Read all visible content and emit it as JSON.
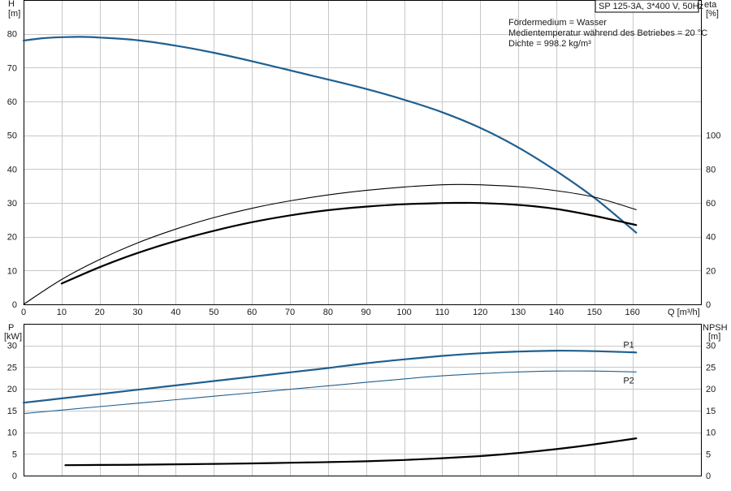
{
  "pump_label": "SP 125-3A, 3*400 V, 50Hz",
  "info_lines": [
    "Fördermedium = Wasser",
    "Medientemperatur während des Betriebes = 20 °C",
    "Dichte = 998.2 kg/m³"
  ],
  "colors": {
    "blue": "#1f5f8f",
    "black": "#000000",
    "grid": "#c8c8c8"
  },
  "chart_data": [
    {
      "type": "line",
      "panel": "top",
      "x_axis_label": "Q [m³/h]",
      "x_ticks": [
        0,
        10,
        20,
        30,
        40,
        50,
        60,
        70,
        80,
        90,
        100,
        110,
        120,
        130,
        140,
        150,
        160
      ],
      "xlim": [
        0,
        178
      ],
      "left_axis": {
        "label_lines": [
          "H",
          "[m]"
        ],
        "ticks": [
          0,
          10,
          20,
          30,
          40,
          50,
          60,
          70,
          80
        ],
        "lim": [
          0,
          90
        ]
      },
      "right_axis": {
        "label_lines": [
          "eta",
          "[%]"
        ],
        "ticks": [
          0,
          20,
          40,
          60,
          80,
          100
        ],
        "lim": [
          0,
          180
        ]
      },
      "series": [
        {
          "axis": "left",
          "color_key": "blue",
          "width": 2.2,
          "points": [
            [
              0,
              78
            ],
            [
              5,
              78.7
            ],
            [
              10,
              79
            ],
            [
              15,
              79.1
            ],
            [
              20,
              78.9
            ],
            [
              30,
              78.1
            ],
            [
              40,
              76.5
            ],
            [
              50,
              74.4
            ],
            [
              60,
              71.9
            ],
            [
              70,
              69.2
            ],
            [
              80,
              66.5
            ],
            [
              90,
              63.7
            ],
            [
              100,
              60.5
            ],
            [
              110,
              56.8
            ],
            [
              120,
              52.2
            ],
            [
              130,
              46.4
            ],
            [
              140,
              39.4
            ],
            [
              150,
              31.5
            ],
            [
              161,
              21.2
            ]
          ]
        },
        {
          "axis": "right",
          "color_key": "black",
          "width": 1.1,
          "points": [
            [
              0,
              0
            ],
            [
              10,
              14.7
            ],
            [
              20,
              26.5
            ],
            [
              30,
              36.4
            ],
            [
              40,
              44.5
            ],
            [
              50,
              51.3
            ],
            [
              60,
              56.8
            ],
            [
              70,
              61.2
            ],
            [
              80,
              64.7
            ],
            [
              90,
              67.4
            ],
            [
              100,
              69.4
            ],
            [
              110,
              70.7
            ],
            [
              115,
              70.9
            ],
            [
              120,
              70.7
            ],
            [
              130,
              69.6
            ],
            [
              140,
              67.2
            ],
            [
              150,
              63.4
            ],
            [
              161,
              56
            ]
          ]
        },
        {
          "axis": "right",
          "color_key": "black",
          "width": 2.2,
          "points": [
            [
              10,
              12.3
            ],
            [
              20,
              22
            ],
            [
              30,
              30.4
            ],
            [
              40,
              37.5
            ],
            [
              50,
              43.5
            ],
            [
              60,
              48.6
            ],
            [
              70,
              52.6
            ],
            [
              80,
              55.7
            ],
            [
              90,
              57.8
            ],
            [
              100,
              59.2
            ],
            [
              110,
              59.9
            ],
            [
              115,
              60
            ],
            [
              120,
              59.9
            ],
            [
              130,
              58.8
            ],
            [
              140,
              56.4
            ],
            [
              150,
              52.3
            ],
            [
              161,
              46.9
            ]
          ]
        }
      ]
    },
    {
      "type": "line",
      "panel": "bottom",
      "xlim": [
        0,
        178
      ],
      "left_axis": {
        "label_lines": [
          "P",
          "[kW]"
        ],
        "ticks": [
          0,
          5,
          10,
          15,
          20,
          25,
          30
        ],
        "lim": [
          0,
          35
        ]
      },
      "right_axis": {
        "label_lines": [
          "NPSH",
          "[m]"
        ],
        "ticks": [
          0,
          5,
          10,
          15,
          20,
          25,
          30
        ],
        "lim": [
          0,
          35
        ]
      },
      "series": [
        {
          "name": "P1",
          "axis": "left",
          "color_key": "blue",
          "width": 2.2,
          "points": [
            [
              0,
              16.8
            ],
            [
              10,
              17.8
            ],
            [
              20,
              18.8
            ],
            [
              30,
              19.8
            ],
            [
              40,
              20.8
            ],
            [
              50,
              21.8
            ],
            [
              60,
              22.8
            ],
            [
              70,
              23.8
            ],
            [
              80,
              24.8
            ],
            [
              90,
              25.9
            ],
            [
              100,
              26.8
            ],
            [
              110,
              27.6
            ],
            [
              120,
              28.2
            ],
            [
              130,
              28.6
            ],
            [
              140,
              28.8
            ],
            [
              150,
              28.7
            ],
            [
              161,
              28.4
            ]
          ]
        },
        {
          "name": "P2",
          "axis": "left",
          "color_key": "blue",
          "width": 1.1,
          "points": [
            [
              0,
              14.3
            ],
            [
              10,
              15.1
            ],
            [
              20,
              15.9
            ],
            [
              30,
              16.7
            ],
            [
              40,
              17.5
            ],
            [
              50,
              18.3
            ],
            [
              60,
              19.1
            ],
            [
              70,
              19.9
            ],
            [
              80,
              20.7
            ],
            [
              90,
              21.5
            ],
            [
              100,
              22.3
            ],
            [
              110,
              23
            ],
            [
              120,
              23.5
            ],
            [
              130,
              23.9
            ],
            [
              140,
              24.1
            ],
            [
              150,
              24.1
            ],
            [
              161,
              23.9
            ]
          ]
        },
        {
          "axis": "right",
          "color_key": "black",
          "width": 2.2,
          "points": [
            [
              11,
              2.4
            ],
            [
              20,
              2.45
            ],
            [
              30,
              2.5
            ],
            [
              40,
              2.6
            ],
            [
              50,
              2.7
            ],
            [
              60,
              2.8
            ],
            [
              70,
              2.95
            ],
            [
              80,
              3.1
            ],
            [
              90,
              3.3
            ],
            [
              100,
              3.6
            ],
            [
              110,
              4
            ],
            [
              120,
              4.5
            ],
            [
              130,
              5.2
            ],
            [
              140,
              6.1
            ],
            [
              150,
              7.2
            ],
            [
              161,
              8.6
            ]
          ]
        }
      ]
    }
  ]
}
